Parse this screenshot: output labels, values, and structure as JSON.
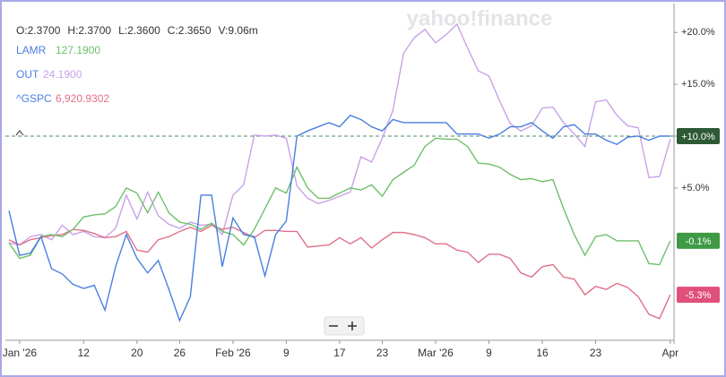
{
  "chart_data": {
    "type": "line",
    "watermark": "yahoo!finance",
    "quote": [
      "O:2.3700",
      "H:2.3700",
      "L:2.3600",
      "C:2.3650",
      "V:9.06m"
    ],
    "categories": [
      null,
      "Jan '26",
      null,
      null,
      null,
      null,
      null,
      "12",
      null,
      null,
      null,
      null,
      "20",
      null,
      null,
      null,
      "26",
      null,
      null,
      null,
      null,
      "Feb '26",
      null,
      null,
      null,
      null,
      "9",
      null,
      null,
      null,
      null,
      "17",
      null,
      null,
      null,
      "23",
      null,
      null,
      null,
      null,
      "Mar '26",
      null,
      null,
      null,
      null,
      "9",
      null,
      null,
      null,
      null,
      "16",
      null,
      null,
      null,
      null,
      "23",
      null,
      null,
      null,
      null,
      null,
      null,
      "Apr"
    ],
    "ylim": [
      -9.7,
      22.7
    ],
    "yticks": [
      {
        "value": 5,
        "label": "+5.0%"
      },
      {
        "value": 10,
        "label": "+10.0%"
      },
      {
        "value": 15,
        "label": "+15.0%"
      },
      {
        "value": 20,
        "label": "+20.0%"
      }
    ],
    "series": [
      {
        "color": "#4a7fe0",
        "badge_color": "#2d5a36",
        "values": [
          2.8,
          -1.5,
          -1.3,
          0.3,
          -2.8,
          -3.3,
          -4.3,
          -4.7,
          -4.4,
          -6.8,
          -2.6,
          0.5,
          -1.8,
          -3.2,
          -2.0,
          -4.8,
          -7.8,
          -5.5,
          4.3,
          4.3,
          -2.6,
          2.1,
          0.5,
          0.3,
          -3.5,
          0.5,
          1.8,
          10.0,
          10.5,
          10.9,
          11.3,
          10.9,
          12.0,
          11.6,
          10.9,
          10.5,
          11.6,
          11.3,
          11.3,
          11.3,
          11.3,
          11.3,
          10.2,
          10.2,
          10.2,
          9.8,
          10.2,
          10.9,
          10.9,
          11.3,
          10.5,
          9.8,
          10.9,
          11.1,
          10.2,
          10.2,
          9.6,
          9.2,
          9.9,
          10.0,
          9.6,
          10.0,
          10.0
        ],
        "value_labels": [
          null,
          null,
          null,
          null,
          null,
          null,
          null,
          null,
          null,
          null,
          null,
          null,
          null,
          null,
          null,
          null,
          null,
          null,
          null,
          null,
          null,
          null,
          null,
          null,
          null,
          null,
          null,
          null,
          null,
          null,
          null,
          null,
          null,
          null,
          null,
          null,
          null,
          null,
          null,
          null,
          null,
          null,
          null,
          null,
          null,
          null,
          null,
          null,
          null,
          null,
          null,
          null,
          null,
          null,
          null,
          null,
          null,
          null,
          null,
          null,
          null,
          null,
          "+10.0%"
        ]
      },
      {
        "name": "LAMR",
        "price": "127.1900",
        "color": "#6fbf6a",
        "badge_color": "#3f9a45",
        "values": [
          -0.3,
          -1.8,
          -1.5,
          0.3,
          0.5,
          0.3,
          1.0,
          2.2,
          2.4,
          2.5,
          3.2,
          5.0,
          4.5,
          2.6,
          4.6,
          2.6,
          1.7,
          1.5,
          1.0,
          1.6,
          0.8,
          0.5,
          -0.5,
          1.0,
          3.0,
          5.0,
          4.5,
          7.0,
          5.0,
          4.0,
          4.0,
          4.5,
          5.0,
          4.8,
          5.3,
          4.2,
          5.8,
          6.5,
          7.2,
          9.0,
          9.8,
          9.7,
          9.7,
          9.0,
          7.4,
          7.3,
          7.0,
          6.3,
          5.8,
          5.9,
          5.6,
          5.8,
          3.0,
          0.5,
          -1.5,
          0.3,
          0.5,
          -0.1,
          -0.1,
          -0.1,
          -2.3,
          -2.4,
          -0.1
        ],
        "value_labels": [
          null,
          null,
          null,
          null,
          null,
          null,
          null,
          null,
          null,
          null,
          null,
          null,
          null,
          null,
          null,
          null,
          null,
          null,
          null,
          null,
          null,
          null,
          null,
          null,
          null,
          null,
          null,
          null,
          null,
          null,
          null,
          null,
          null,
          null,
          null,
          null,
          null,
          null,
          null,
          null,
          null,
          null,
          null,
          null,
          null,
          null,
          null,
          null,
          null,
          null,
          null,
          null,
          null,
          null,
          null,
          null,
          null,
          null,
          null,
          null,
          null,
          null,
          "-0.1%"
        ]
      },
      {
        "name": "OUT",
        "price": "24.1900",
        "color": "#c8a2e8",
        "values": [
          -0.3,
          -0.5,
          0.3,
          0.5,
          0,
          1.4,
          0.5,
          0.8,
          0.3,
          0.2,
          1.1,
          4.3,
          2.0,
          4.6,
          2.3,
          1.5,
          1.1,
          1.7,
          1.4,
          1.5,
          0.5,
          4.3,
          5.3,
          10.1,
          10.0,
          10.1,
          9.8,
          5.2,
          4.0,
          3.5,
          3.8,
          4.2,
          4.6,
          8.0,
          7.5,
          9.8,
          12.5,
          18.0,
          19.5,
          20.3,
          19.0,
          19.8,
          20.8,
          18.5,
          16.3,
          15.8,
          13.4,
          11.2,
          10.5,
          11.0,
          12.7,
          12.8,
          11.3,
          10.2,
          9.0,
          13.3,
          13.5,
          12.0,
          11.0,
          10.8,
          6.0,
          6.1,
          9.7
        ]
      },
      {
        "name": "^GSPC",
        "price": "6,920.9302",
        "color": "#e0708a",
        "badge_color": "#e0507a",
        "values": [
          0,
          -0.5,
          0,
          0.2,
          0.4,
          0.5,
          1.0,
          0.9,
          0.6,
          0.2,
          0.3,
          0.8,
          -1.0,
          -1.2,
          0,
          0.3,
          0.8,
          1.2,
          0.8,
          1.4,
          1.0,
          1.2,
          0.7,
          0.2,
          0.9,
          0.9,
          0.8,
          0.8,
          -0.7,
          -0.6,
          -0.5,
          0.2,
          -0.4,
          0.2,
          -0.8,
          0,
          0.7,
          0.7,
          0.5,
          0.2,
          -0.4,
          -0.4,
          -1.0,
          -1.2,
          -2.2,
          -1.4,
          -1.4,
          -1.8,
          -3.2,
          -3.6,
          -2.6,
          -2.4,
          -3.6,
          -3.8,
          -5.3,
          -4.5,
          -4.8,
          -4.2,
          -4.6,
          -5.5,
          -7.2,
          -7.6,
          -5.3
        ],
        "value_labels": [
          null,
          null,
          null,
          null,
          null,
          null,
          null,
          null,
          null,
          null,
          null,
          null,
          null,
          null,
          null,
          null,
          null,
          null,
          null,
          null,
          null,
          null,
          null,
          null,
          null,
          null,
          null,
          null,
          null,
          null,
          null,
          null,
          null,
          null,
          null,
          null,
          null,
          null,
          null,
          null,
          null,
          null,
          null,
          null,
          null,
          null,
          null,
          null,
          null,
          null,
          null,
          null,
          null,
          null,
          null,
          null,
          null,
          null,
          null,
          null,
          null,
          null,
          "-5.3%"
        ]
      }
    ]
  }
}
